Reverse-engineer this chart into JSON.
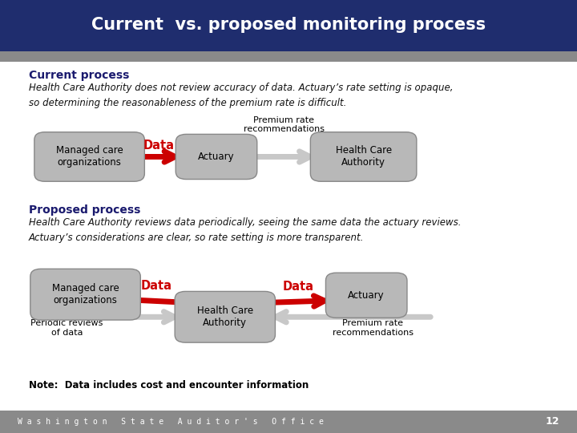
{
  "title": "Current  vs. proposed monitoring process",
  "title_bg": "#1f2d6e",
  "title_color": "#ffffff",
  "subtitle_bar_color": "#8a8a8a",
  "bg_color": "#ffffff",
  "footer_bg": "#8a8a8a",
  "footer_text": "W a s h i n g t o n   S t a t e   A u d i t o r ' s   O f f i c e",
  "footer_page": "12",
  "current_heading": "Current process",
  "current_body": "Health Care Authority does not review accuracy of data. Actuary’s rate setting is opaque,\nso determining the reasonableness of the premium rate is difficult.",
  "proposed_heading": "Proposed process",
  "proposed_body": "Health Care Authority reviews data periodically, seeing the same data the actuary reviews.\nActuary’s considerations are clear, so rate setting is more transparent.",
  "note": "Note:  Data includes cost and encounter information",
  "box_fill": "#b8b8b8",
  "box_edge": "#888888",
  "arrow_gray": "#c8c8c8",
  "arrow_red": "#cc0000"
}
